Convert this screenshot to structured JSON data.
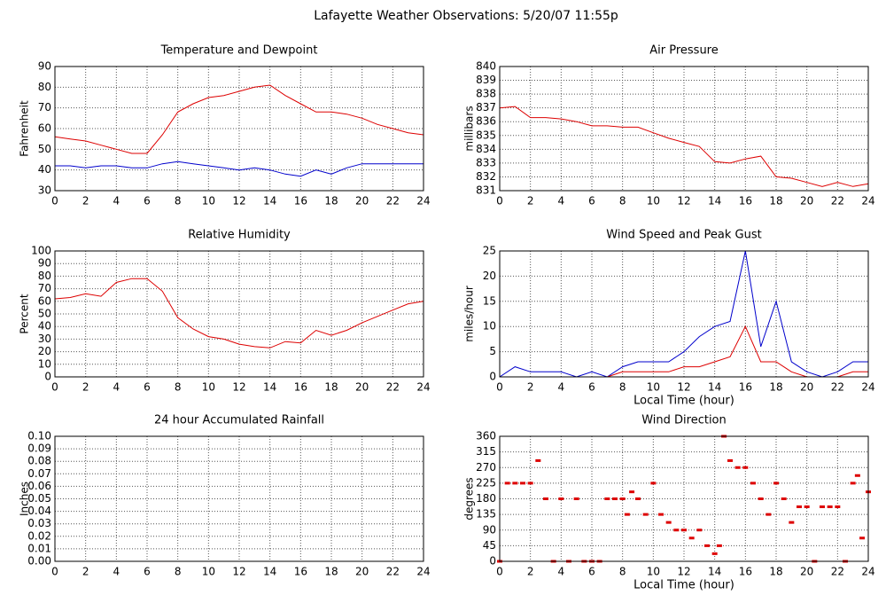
{
  "title": "Lafayette Weather Observations: 5/20/07 11:55p",
  "chart_data": [
    {
      "type": "line",
      "title": "Temperature and Dewpoint",
      "ylabel": "Fahrenheit",
      "x": [
        0,
        1,
        2,
        3,
        4,
        5,
        6,
        7,
        8,
        9,
        10,
        11,
        12,
        13,
        14,
        15,
        16,
        17,
        18,
        19,
        20,
        21,
        22,
        23,
        24
      ],
      "series": [
        {
          "color": "#dd0000",
          "values": [
            56,
            55,
            54,
            52,
            50,
            48,
            48,
            57,
            68,
            72,
            75,
            76,
            78,
            80,
            81,
            76,
            72,
            68,
            68,
            67,
            65,
            62,
            60,
            58,
            57
          ]
        },
        {
          "color": "#0000cc",
          "values": [
            42,
            42,
            41,
            42,
            42,
            41,
            41,
            43,
            44,
            43,
            42,
            41,
            40,
            41,
            40,
            38,
            37,
            40,
            38,
            41,
            43,
            43,
            43,
            43,
            43
          ]
        }
      ],
      "xlim": [
        0,
        24
      ],
      "xticks": [
        0,
        2,
        4,
        6,
        8,
        10,
        12,
        14,
        16,
        18,
        20,
        22,
        24
      ],
      "ylim": [
        30,
        90
      ],
      "yticks": [
        30,
        40,
        50,
        60,
        70,
        80,
        90
      ],
      "grid": true
    },
    {
      "type": "line",
      "title": "Air Pressure",
      "ylabel": "millibars",
      "x": [
        0,
        1,
        2,
        3,
        4,
        5,
        6,
        7,
        8,
        9,
        10,
        11,
        12,
        13,
        14,
        15,
        16,
        17,
        18,
        19,
        20,
        21,
        22,
        23,
        24
      ],
      "series": [
        {
          "color": "#dd0000",
          "values": [
            837,
            837.1,
            836.3,
            836.3,
            836.2,
            836,
            835.7,
            835.7,
            835.6,
            835.6,
            835.2,
            834.8,
            834.5,
            834.2,
            833.1,
            833,
            833.3,
            833.5,
            832,
            831.9,
            831.6,
            831.3,
            831.6,
            831.3,
            831.5
          ]
        }
      ],
      "xlim": [
        0,
        24
      ],
      "xticks": [
        0,
        2,
        4,
        6,
        8,
        10,
        12,
        14,
        16,
        18,
        20,
        22,
        24
      ],
      "ylim": [
        831,
        840
      ],
      "yticks": [
        831,
        832,
        833,
        834,
        835,
        836,
        837,
        838,
        839,
        840
      ],
      "grid": true
    },
    {
      "type": "line",
      "title": "Relative Humidity",
      "ylabel": "Percent",
      "x": [
        0,
        1,
        2,
        3,
        4,
        5,
        6,
        7,
        8,
        9,
        10,
        11,
        12,
        13,
        14,
        15,
        16,
        17,
        18,
        19,
        20,
        21,
        22,
        23,
        24
      ],
      "series": [
        {
          "color": "#dd0000",
          "values": [
            62,
            63,
            66,
            64,
            75,
            78,
            78,
            68,
            47,
            38,
            32,
            30,
            26,
            24,
            23,
            28,
            27,
            37,
            33,
            37,
            43,
            48,
            53,
            58,
            60
          ]
        }
      ],
      "xlim": [
        0,
        24
      ],
      "xticks": [
        0,
        2,
        4,
        6,
        8,
        10,
        12,
        14,
        16,
        18,
        20,
        22,
        24
      ],
      "ylim": [
        0,
        100
      ],
      "yticks": [
        0,
        10,
        20,
        30,
        40,
        50,
        60,
        70,
        80,
        90,
        100
      ],
      "grid": true
    },
    {
      "type": "line",
      "title": "Wind Speed and Peak Gust",
      "ylabel": "miles/hour",
      "xlabel": "Local Time (hour)",
      "x": [
        0,
        1,
        2,
        3,
        4,
        5,
        6,
        7,
        8,
        9,
        10,
        11,
        12,
        13,
        14,
        15,
        16,
        17,
        18,
        19,
        20,
        21,
        22,
        23,
        24
      ],
      "series": [
        {
          "color": "#0000cc",
          "values": [
            0,
            2,
            1,
            1,
            1,
            0,
            1,
            0,
            2,
            3,
            3,
            3,
            5,
            8,
            10,
            11,
            25,
            6,
            15,
            3,
            1,
            0,
            1,
            3,
            3
          ]
        },
        {
          "color": "#dd0000",
          "values": [
            0,
            0,
            0,
            0,
            0,
            0,
            0,
            0,
            1,
            1,
            1,
            1,
            2,
            2,
            3,
            4,
            10,
            3,
            3,
            1,
            0,
            0,
            0,
            1,
            1
          ]
        }
      ],
      "xlim": [
        0,
        24
      ],
      "xticks": [
        0,
        2,
        4,
        6,
        8,
        10,
        12,
        14,
        16,
        18,
        20,
        22,
        24
      ],
      "ylim": [
        0,
        25
      ],
      "yticks": [
        0,
        5,
        10,
        15,
        20,
        25
      ],
      "grid": true
    },
    {
      "type": "line",
      "title": "24 hour Accumulated Rainfall",
      "ylabel": "Inches",
      "x": [
        0,
        1,
        2,
        3,
        4,
        5,
        6,
        7,
        8,
        9,
        10,
        11,
        12,
        13,
        14,
        15,
        16,
        17,
        18,
        19,
        20,
        21,
        22,
        23,
        24
      ],
      "series": [
        {
          "color": "#dd0000",
          "values": [
            0,
            0,
            0,
            0,
            0,
            0,
            0,
            0,
            0,
            0,
            0,
            0,
            0,
            0,
            0,
            0,
            0,
            0,
            0,
            0,
            0,
            0,
            0,
            0,
            0
          ]
        }
      ],
      "xlim": [
        0,
        24
      ],
      "xticks": [
        0,
        2,
        4,
        6,
        8,
        10,
        12,
        14,
        16,
        18,
        20,
        22,
        24
      ],
      "ylim": [
        0,
        0.1
      ],
      "yticks": [
        {
          "value": 0,
          "label": "0.00"
        },
        0.01,
        0.02,
        0.03,
        0.04,
        0.05,
        0.06,
        0.07,
        0.08,
        0.09,
        {
          "value": 0.1,
          "label": "0.10"
        }
      ],
      "grid": true
    },
    {
      "type": "scatter",
      "title": "Wind Direction",
      "ylabel": "degrees",
      "xlabel": "Local Time (hour)",
      "color": "#dd0000",
      "x": [
        0,
        0.5,
        1,
        1.5,
        2,
        2.5,
        3,
        3.5,
        4,
        4.5,
        5,
        5.5,
        6,
        6.5,
        7,
        7.5,
        8,
        8.3,
        8.6,
        9,
        9.5,
        10,
        10.5,
        11,
        11.5,
        12,
        12.5,
        13,
        13.5,
        14,
        14.3,
        14.6,
        15,
        15.5,
        16,
        16.5,
        17,
        17.5,
        18,
        18.5,
        19,
        19.5,
        20,
        20.5,
        21,
        21.5,
        22,
        22.5,
        23,
        23.3,
        23.6,
        24
      ],
      "values": [
        0,
        225,
        225,
        225,
        225,
        290,
        180,
        0,
        180,
        0,
        180,
        0,
        0,
        0,
        180,
        180,
        180,
        135,
        200,
        180,
        135,
        225,
        135,
        112,
        90,
        90,
        67,
        90,
        45,
        22,
        45,
        360,
        290,
        270,
        270,
        225,
        180,
        135,
        225,
        180,
        112,
        157,
        157,
        0,
        157,
        157,
        157,
        0,
        225,
        247,
        67,
        200
      ],
      "xlim": [
        0,
        24
      ],
      "xticks": [
        0,
        2,
        4,
        6,
        8,
        10,
        12,
        14,
        16,
        18,
        20,
        22,
        24
      ],
      "ylim": [
        0,
        360
      ],
      "yticks": [
        0,
        45,
        90,
        135,
        180,
        225,
        270,
        315,
        360
      ],
      "grid": true
    }
  ]
}
